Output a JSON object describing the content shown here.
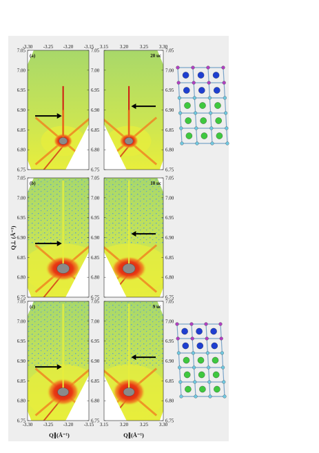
{
  "figure": {
    "left_x_axis": {
      "ticks": [
        "-3.30",
        "-3.25",
        "-3.20",
        "-3.15"
      ],
      "label": "Q∥(Å⁻¹)"
    },
    "right_x_axis": {
      "ticks": [
        "3.15",
        "3.20",
        "3.25",
        "3.30"
      ],
      "label": "Q∥(Å⁻¹)"
    },
    "y_axis": {
      "ticks": [
        "7.05",
        "7.00",
        "6.95",
        "6.90",
        "6.85",
        "6.80",
        "6.75"
      ],
      "label": "Q⊥ (Å⁻¹)"
    },
    "panels": [
      {
        "label": "(a)",
        "thickness": "20 uc"
      },
      {
        "label": "(b)",
        "thickness": "10 uc"
      },
      {
        "label": "(c)",
        "thickness": "9 uc"
      }
    ],
    "colors": {
      "background_low": "#a8d86a",
      "mid": "#e8ee3c",
      "high": "#f08020",
      "peak": "#d01810",
      "saturated": "#8a8a8a",
      "noise_blue": "#5aa0d0",
      "atom_blue": "#1f3fd0",
      "atom_green": "#3fc83f",
      "atom_purple": "#b040c0",
      "atom_cyan": "#70c8e0"
    }
  }
}
